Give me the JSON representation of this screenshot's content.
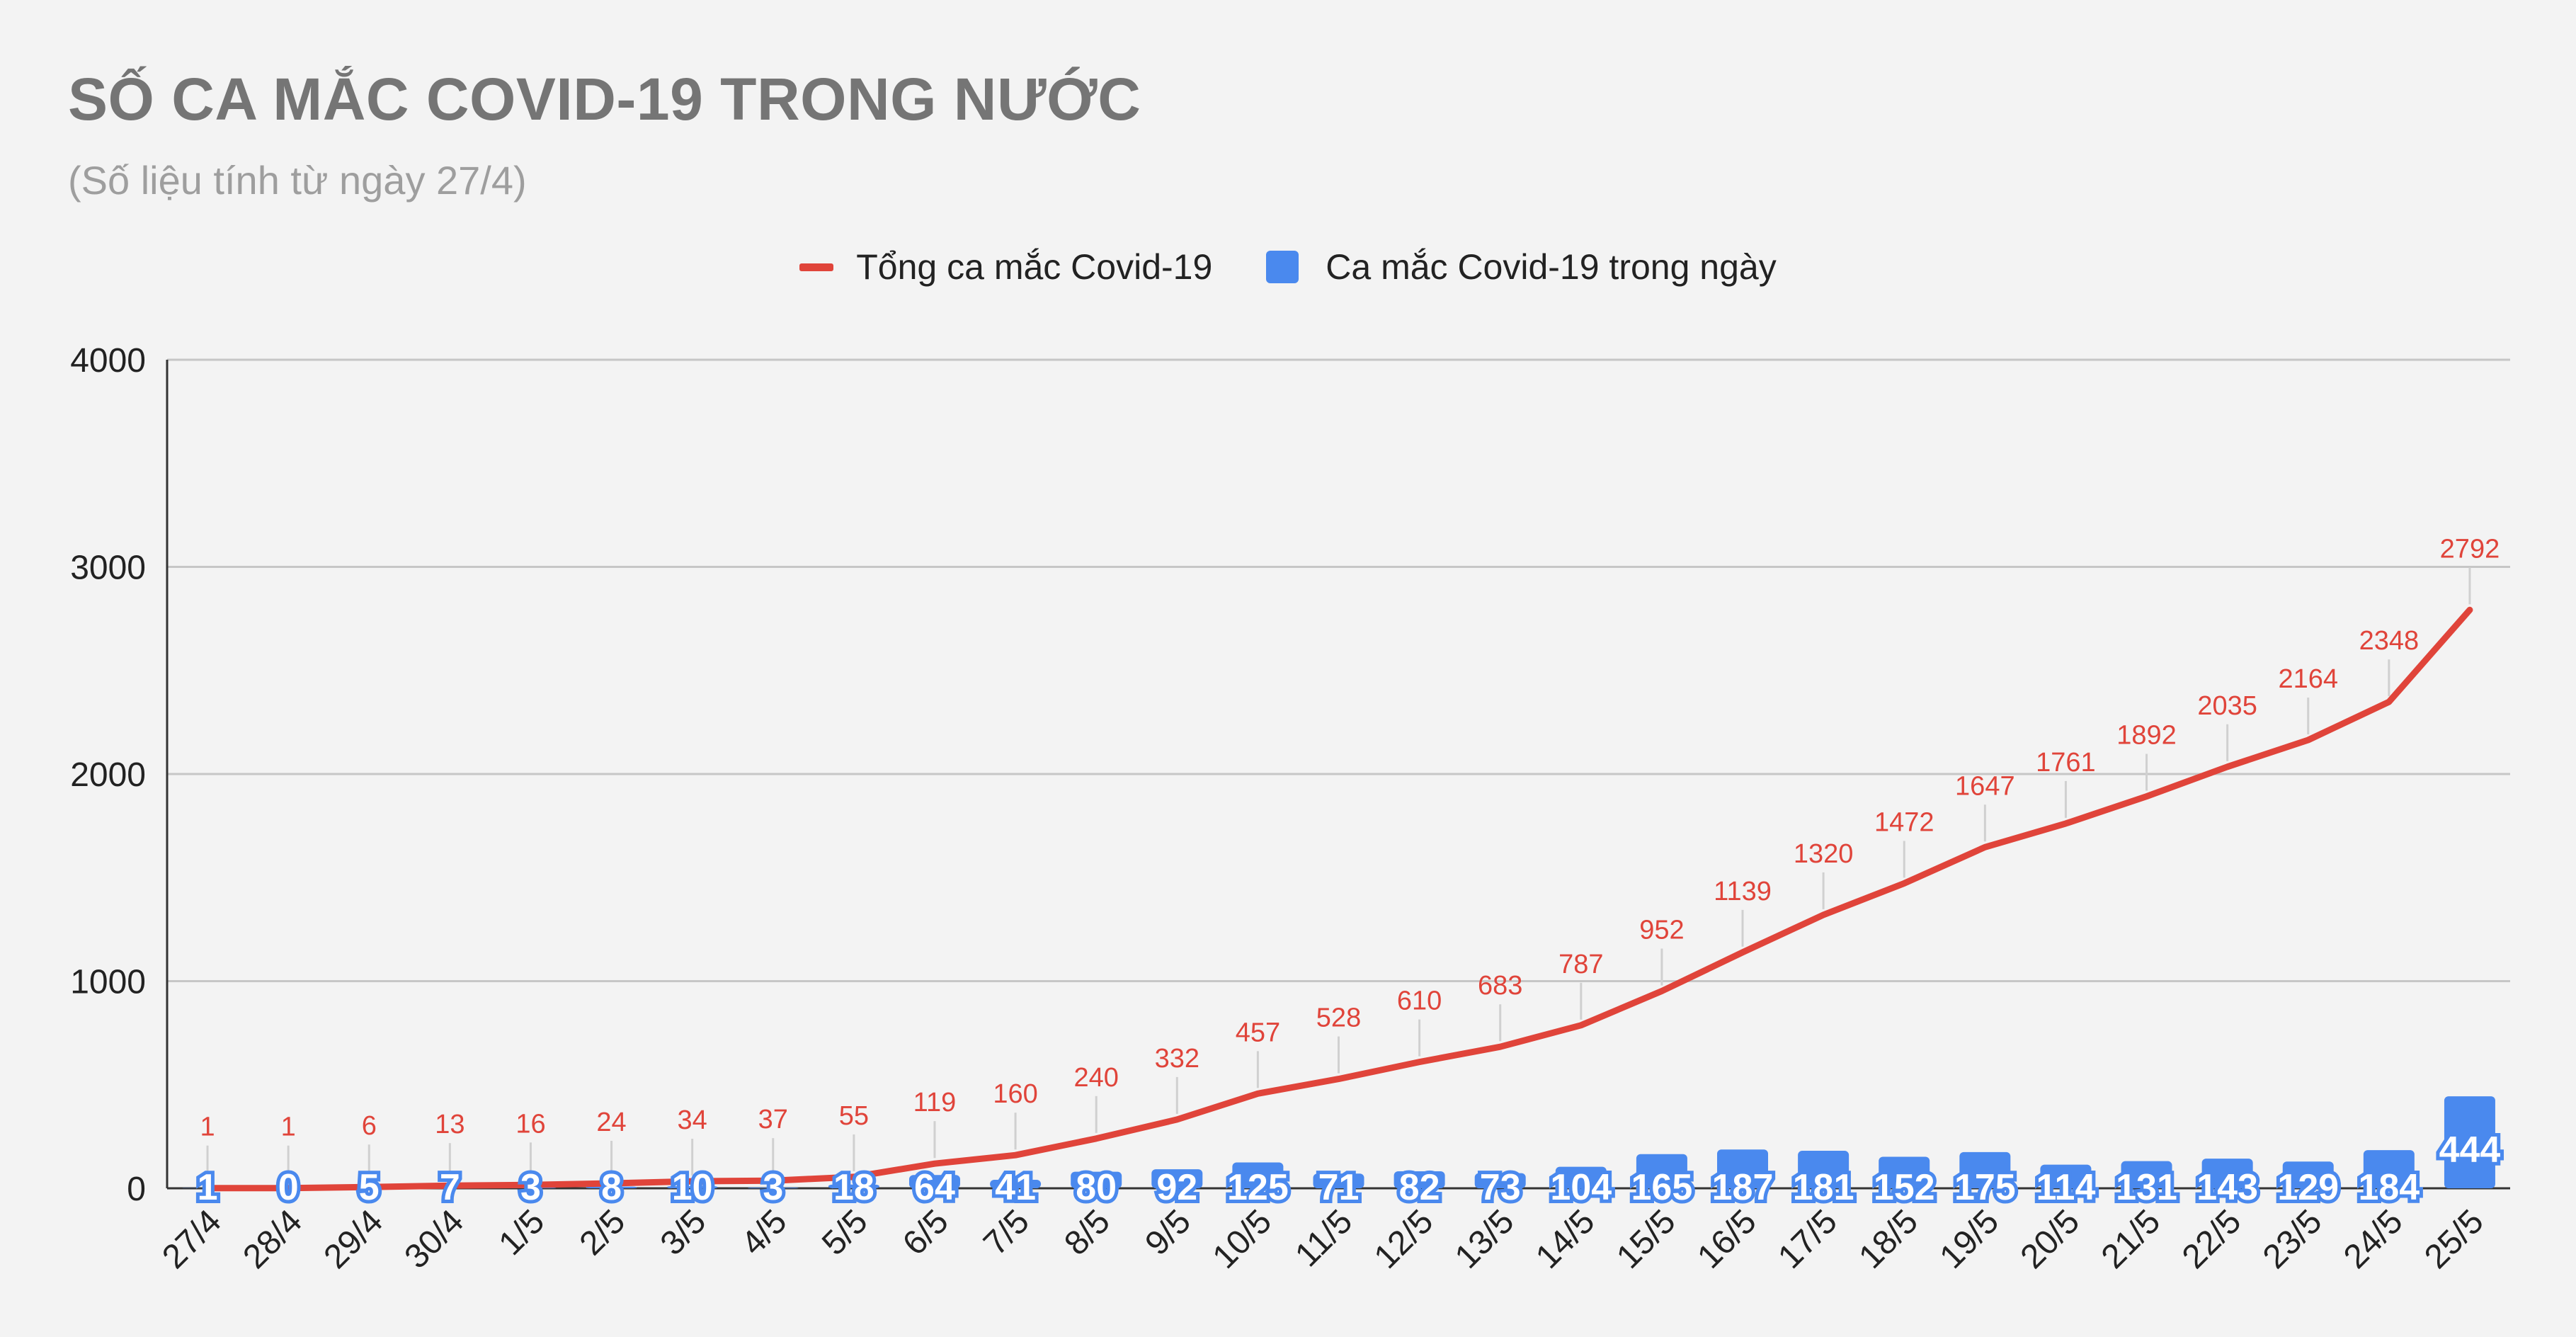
{
  "header": {
    "title": "SỐ CA MẮC COVID-19 TRONG NƯỚC",
    "subtitle": "(Số liệu tính từ ngày 27/4)"
  },
  "legend": {
    "total_label": "Tổng ca mắc Covid-19",
    "daily_label": "Ca mắc Covid-19 trong ngày"
  },
  "colors": {
    "total": "#e0443a",
    "daily": "#4a89ee",
    "grid": "#c6c6c6",
    "axis": "#333333"
  },
  "chart_data": {
    "type": "bar",
    "title": "SỐ CA MẮC COVID-19 TRONG NƯỚC",
    "subtitle": "(Số liệu tính từ ngày 27/4)",
    "categories": [
      "27/4",
      "28/4",
      "29/4",
      "30/4",
      "1/5",
      "2/5",
      "3/5",
      "4/5",
      "5/5",
      "6/5",
      "7/5",
      "8/5",
      "9/5",
      "10/5",
      "11/5",
      "12/5",
      "13/5",
      "14/5",
      "15/5",
      "16/5",
      "17/5",
      "18/5",
      "19/5",
      "20/5",
      "21/5",
      "22/5",
      "23/5",
      "24/5",
      "25/5"
    ],
    "series": [
      {
        "name": "Tổng ca mắc Covid-19",
        "type": "line",
        "values": [
          1,
          1,
          6,
          13,
          16,
          24,
          34,
          37,
          55,
          119,
          160,
          240,
          332,
          457,
          528,
          610,
          683,
          787,
          952,
          1139,
          1320,
          1472,
          1647,
          1761,
          1892,
          2035,
          2164,
          2348,
          2792
        ]
      },
      {
        "name": "Ca mắc Covid-19 trong ngày",
        "type": "bar",
        "values": [
          1,
          0,
          5,
          7,
          3,
          8,
          10,
          3,
          18,
          64,
          41,
          80,
          92,
          125,
          71,
          82,
          73,
          104,
          165,
          187,
          181,
          152,
          175,
          114,
          131,
          143,
          129,
          184,
          444
        ]
      }
    ],
    "ylim": [
      0,
      4000
    ],
    "yticks": [
      0,
      1000,
      2000,
      3000,
      4000
    ],
    "grid": true,
    "legend_position": "top-center",
    "data_labels": true
  }
}
